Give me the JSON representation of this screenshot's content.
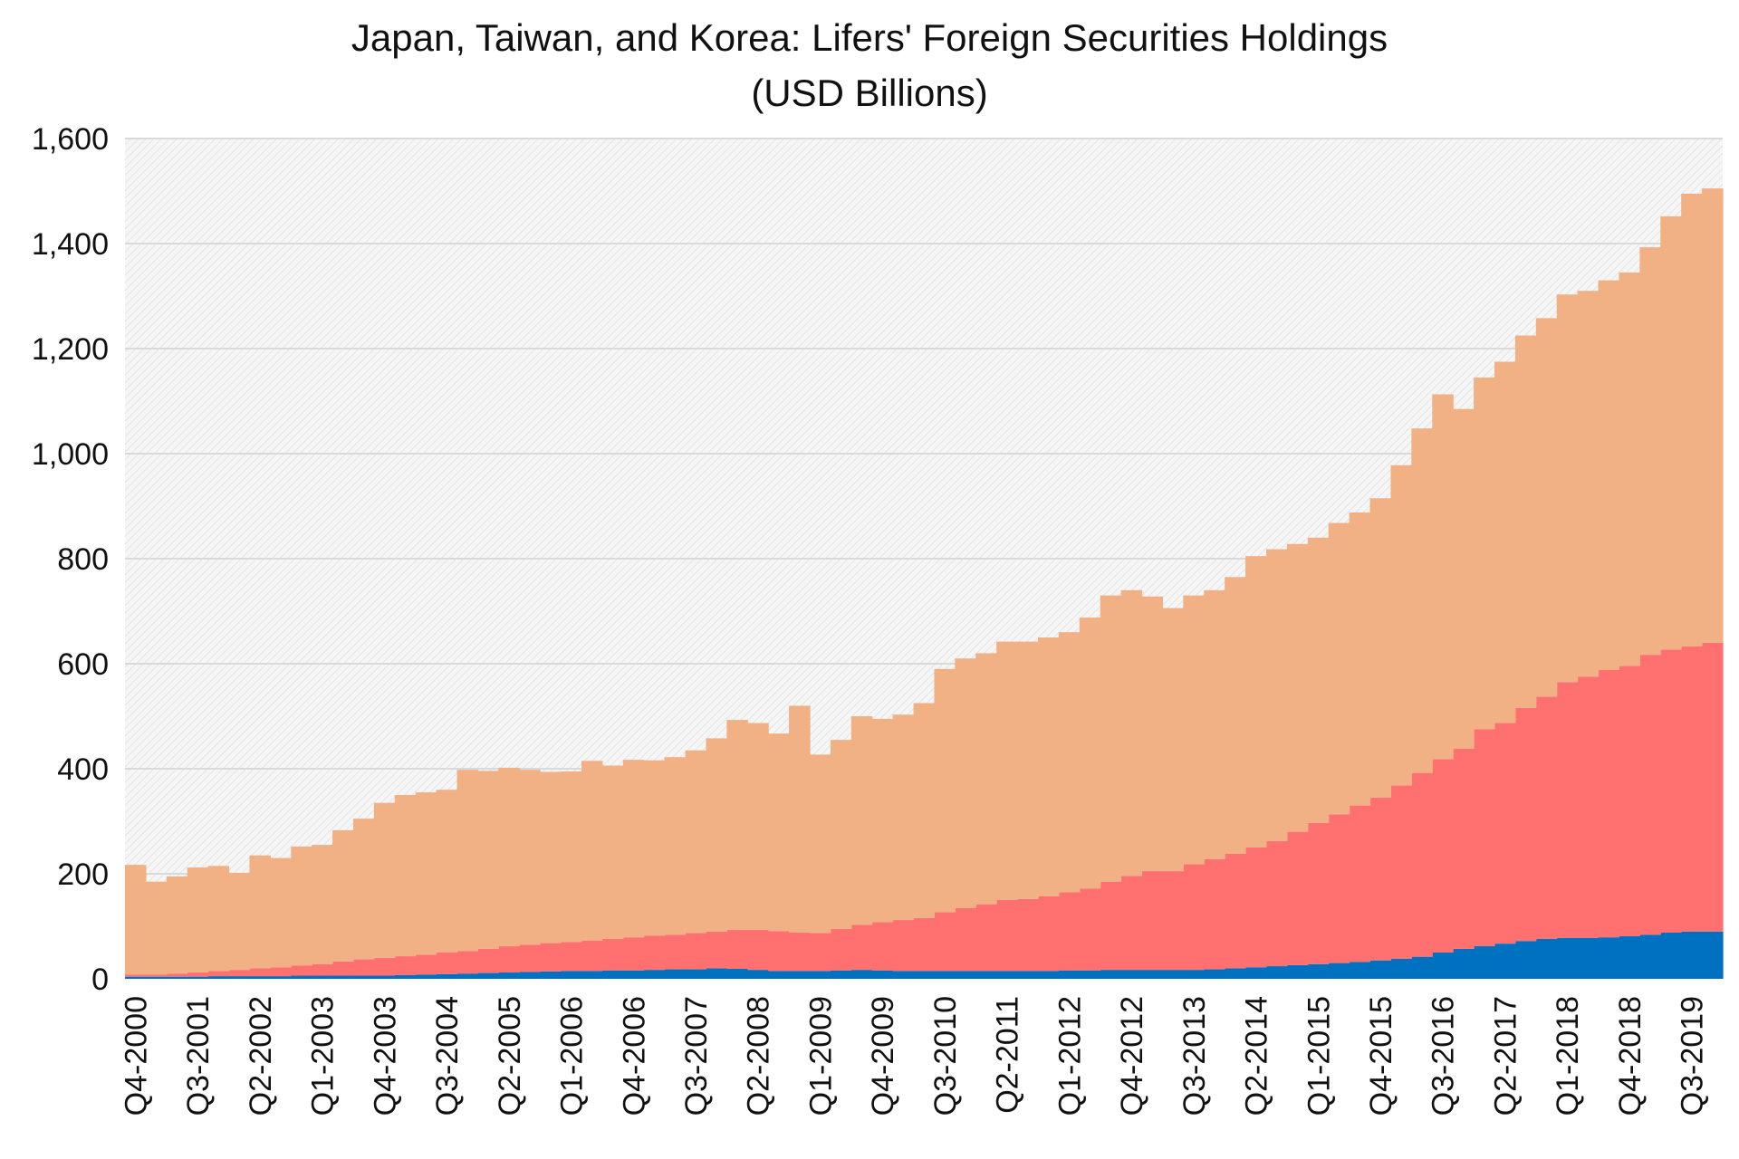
{
  "chart_data": {
    "type": "bar",
    "stacked": true,
    "title": "Japan, Taiwan, and Korea: Lifers' Foreign Securities Holdings",
    "subtitle": "(USD Billions)",
    "xlabel": "",
    "ylabel": "",
    "ylim": [
      0,
      1600
    ],
    "yticks": [
      "0",
      "200",
      "400",
      "600",
      "800",
      "1,000",
      "1,200",
      "1,400",
      "1,600"
    ],
    "grid": true,
    "legend": "none",
    "label_every": 3,
    "categories": [
      "Q4-2000",
      "Q1-2001",
      "Q2-2001",
      "Q3-2001",
      "Q4-2001",
      "Q1-2002",
      "Q2-2002",
      "Q3-2002",
      "Q4-2002",
      "Q1-2003",
      "Q2-2003",
      "Q3-2003",
      "Q4-2003",
      "Q1-2004",
      "Q2-2004",
      "Q3-2004",
      "Q4-2004",
      "Q1-2005",
      "Q2-2005",
      "Q3-2005",
      "Q4-2005",
      "Q1-2006",
      "Q2-2006",
      "Q3-2006",
      "Q4-2006",
      "Q1-2007",
      "Q2-2007",
      "Q3-2007",
      "Q4-2007",
      "Q1-2008",
      "Q2-2008",
      "Q3-2008",
      "Q4-2008",
      "Q1-2009",
      "Q2-2009",
      "Q3-2009",
      "Q4-2009",
      "Q1-2010",
      "Q2-2010",
      "Q3-2010",
      "Q4-2010",
      "Q1-2011",
      "Q2-2011",
      "Q3-2011",
      "Q4-2011",
      "Q1-2012",
      "Q2-2012",
      "Q3-2012",
      "Q4-2012",
      "Q1-2013",
      "Q2-2013",
      "Q3-2013",
      "Q4-2013",
      "Q1-2014",
      "Q2-2014",
      "Q3-2014",
      "Q4-2014",
      "Q1-2015",
      "Q2-2015",
      "Q3-2015",
      "Q4-2015",
      "Q1-2016",
      "Q2-2016",
      "Q3-2016",
      "Q4-2016",
      "Q1-2017",
      "Q2-2017",
      "Q3-2017",
      "Q4-2017",
      "Q1-2018",
      "Q2-2018",
      "Q3-2018",
      "Q4-2018",
      "Q1-2019",
      "Q2-2019",
      "Q3-2019",
      "Q4-2019"
    ],
    "series": [
      {
        "color": "#0070C0",
        "values": [
          4,
          4,
          4,
          4,
          5,
          5,
          5,
          5,
          6,
          6,
          6,
          6,
          6,
          7,
          8,
          9,
          10,
          11,
          12,
          13,
          14,
          15,
          15,
          16,
          16,
          17,
          18,
          18,
          20,
          19,
          17,
          15,
          15,
          15,
          16,
          17,
          16,
          15,
          15,
          15,
          15,
          15,
          15,
          15,
          15,
          16,
          16,
          17,
          17,
          17,
          17,
          17,
          18,
          20,
          22,
          24,
          26,
          28,
          30,
          32,
          35,
          38,
          42,
          50,
          57,
          62,
          67,
          72,
          76,
          78,
          78,
          79,
          81,
          84,
          88,
          90,
          90
        ]
      },
      {
        "color": "#FF7070",
        "values": [
          4,
          4,
          6,
          8,
          10,
          12,
          15,
          17,
          19,
          22,
          27,
          31,
          34,
          36,
          38,
          41,
          43,
          46,
          50,
          52,
          54,
          55,
          58,
          60,
          63,
          65,
          66,
          69,
          70,
          74,
          76,
          76,
          73,
          72,
          79,
          86,
          92,
          97,
          101,
          112,
          120,
          127,
          135,
          137,
          142,
          149,
          156,
          168,
          179,
          188,
          188,
          201,
          210,
          218,
          228,
          238,
          254,
          269,
          283,
          298,
          310,
          330,
          350,
          368,
          381,
          413,
          420,
          444,
          461,
          487,
          497,
          509,
          515,
          533,
          539,
          543,
          550
        ]
      },
      {
        "color": "#F2B085",
        "values": [
          209,
          177,
          185,
          200,
          200,
          185,
          215,
          208,
          227,
          227,
          250,
          268,
          295,
          307,
          309,
          310,
          345,
          339,
          340,
          333,
          326,
          325,
          342,
          330,
          338,
          334,
          338,
          348,
          368,
          400,
          394,
          376,
          432,
          340,
          360,
          397,
          387,
          391,
          409,
          463,
          475,
          478,
          492,
          490,
          493,
          495,
          516,
          545,
          544,
          523,
          501,
          512,
          512,
          527,
          555,
          556,
          548,
          543,
          555,
          558,
          570,
          610,
          656,
          695,
          647,
          670,
          688,
          709,
          721,
          738,
          735,
          742,
          749,
          776,
          825,
          862,
          865
        ]
      }
    ]
  }
}
